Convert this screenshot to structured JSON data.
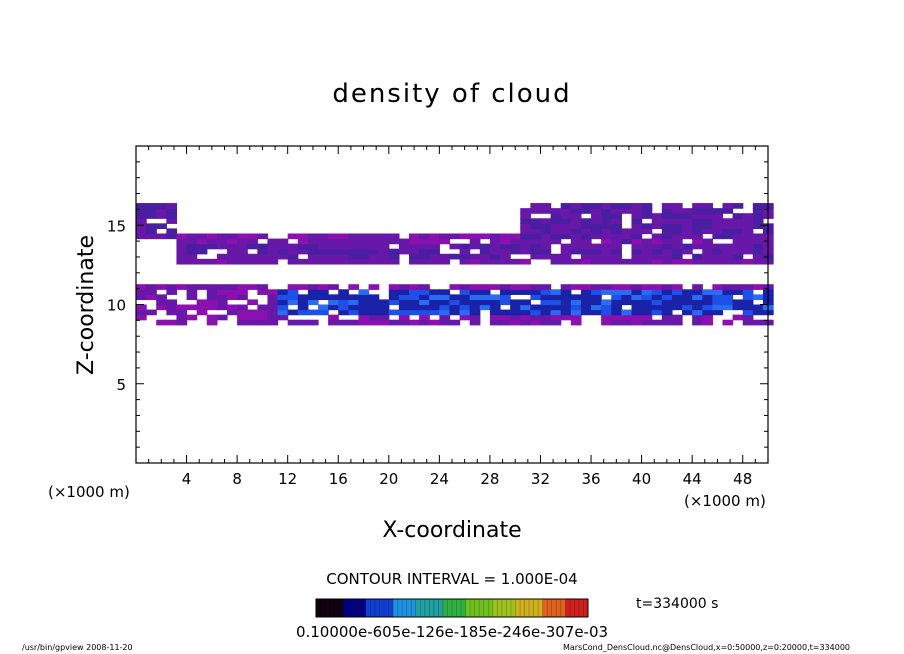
{
  "chart_data": {
    "type": "heatmap",
    "title": "density of cloud",
    "xlabel": "X-coordinate",
    "ylabel": "Z-coordinate",
    "x_unit": "(×1000 m)",
    "y_unit": "(×1000 m)",
    "xlim": [
      0,
      50
    ],
    "ylim": [
      0,
      20
    ],
    "x_ticks": [
      4,
      8,
      12,
      16,
      20,
      24,
      28,
      32,
      36,
      40,
      44,
      48
    ],
    "y_ticks": [
      5,
      10,
      15
    ],
    "grid": false,
    "contour_interval_text": "CONTOUR INTERVAL = 1.000E-04",
    "time_text": "t=334000 s",
    "colorbar_text": "0.10000e-605e-126e-185e-246e-307e-03",
    "colorbar_colors": [
      "#100010",
      "#000080",
      "#1040d0",
      "#2090e0",
      "#20a0a0",
      "#30b040",
      "#70c020",
      "#a0c020",
      "#d0b020",
      "#e06020",
      "#d02020"
    ],
    "bands": [
      {
        "name": "upper",
        "z_center": 13.5,
        "z_thick": 3.0,
        "level": 0.55
      },
      {
        "name": "lower",
        "z_center": 9.9,
        "z_thick": 1.8,
        "level": 0.9
      }
    ],
    "footer_left": "/usr/bin/gpview   2008-11-20",
    "footer_right": "MarsCond_DensCloud.nc@DensCloud,x=0:50000,z=0:20000,t=334000"
  }
}
